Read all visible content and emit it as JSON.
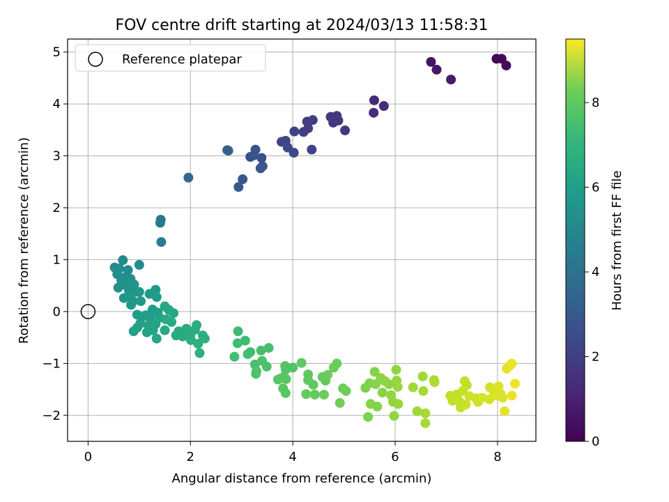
{
  "chart_data": {
    "type": "scatter",
    "title": "FOV centre drift starting at 2024/03/13 11:58:31",
    "xlabel": "Angular distance from reference (arcmin)",
    "ylabel": "Rotation from reference (arcmin)",
    "colorbar_label": "Hours from first FF file",
    "colormap": "viridis",
    "color_range": [
      0,
      9.5
    ],
    "xlim": [
      -0.4,
      8.75
    ],
    "ylim": [
      -2.5,
      5.25
    ],
    "xticks": [
      "0",
      "2",
      "4",
      "6",
      "8"
    ],
    "yticks": [
      "−2",
      "−1",
      "0",
      "1",
      "2",
      "3",
      "4",
      "5"
    ],
    "cticks": [
      "0",
      "2",
      "4",
      "6",
      "8"
    ],
    "grid": true,
    "legend": {
      "placement": "top-left",
      "entries": [
        "Reference platepar"
      ]
    },
    "reference_point": {
      "x": 0,
      "y": 0
    },
    "points": [
      {
        "x": 7.98,
        "y": 4.87,
        "c": 0.1
      },
      {
        "x": 8.08,
        "y": 4.87,
        "c": 0.2
      },
      {
        "x": 8.17,
        "y": 4.74,
        "c": 0.3
      },
      {
        "x": 6.7,
        "y": 4.81,
        "c": 0.5
      },
      {
        "x": 6.81,
        "y": 4.66,
        "c": 0.6
      },
      {
        "x": 7.09,
        "y": 4.47,
        "c": 0.7
      },
      {
        "x": 5.59,
        "y": 4.07,
        "c": 1.1
      },
      {
        "x": 5.78,
        "y": 3.96,
        "c": 1.2
      },
      {
        "x": 5.58,
        "y": 3.83,
        "c": 1.2
      },
      {
        "x": 4.74,
        "y": 3.75,
        "c": 1.5
      },
      {
        "x": 4.86,
        "y": 3.77,
        "c": 1.5
      },
      {
        "x": 4.79,
        "y": 3.64,
        "c": 1.6
      },
      {
        "x": 4.89,
        "y": 3.68,
        "c": 1.6
      },
      {
        "x": 5.02,
        "y": 3.49,
        "c": 1.6
      },
      {
        "x": 4.39,
        "y": 3.69,
        "c": 1.7
      },
      {
        "x": 4.28,
        "y": 3.66,
        "c": 1.7
      },
      {
        "x": 4.3,
        "y": 3.53,
        "c": 1.8
      },
      {
        "x": 4.21,
        "y": 3.46,
        "c": 1.8
      },
      {
        "x": 4.03,
        "y": 3.47,
        "c": 1.9
      },
      {
        "x": 4.37,
        "y": 3.12,
        "c": 1.9
      },
      {
        "x": 3.78,
        "y": 3.27,
        "c": 2.0
      },
      {
        "x": 3.86,
        "y": 3.29,
        "c": 2.0
      },
      {
        "x": 3.9,
        "y": 3.16,
        "c": 2.1
      },
      {
        "x": 4.02,
        "y": 3.06,
        "c": 2.1
      },
      {
        "x": 3.27,
        "y": 3.12,
        "c": 2.4
      },
      {
        "x": 3.17,
        "y": 2.98,
        "c": 2.4
      },
      {
        "x": 3.39,
        "y": 2.96,
        "c": 2.4
      },
      {
        "x": 3.24,
        "y": 3.01,
        "c": 2.5
      },
      {
        "x": 3.41,
        "y": 2.8,
        "c": 2.5
      },
      {
        "x": 3.37,
        "y": 2.76,
        "c": 2.6
      },
      {
        "x": 3.02,
        "y": 2.55,
        "c": 2.6
      },
      {
        "x": 2.94,
        "y": 2.4,
        "c": 2.7
      },
      {
        "x": 2.72,
        "y": 3.11,
        "c": 2.9
      },
      {
        "x": 2.74,
        "y": 3.1,
        "c": 2.9
      },
      {
        "x": 1.96,
        "y": 2.58,
        "c": 3.2
      },
      {
        "x": 1.42,
        "y": 1.77,
        "c": 3.9
      },
      {
        "x": 1.41,
        "y": 1.71,
        "c": 3.9
      },
      {
        "x": 1.43,
        "y": 1.34,
        "c": 4.1
      },
      {
        "x": 0.52,
        "y": 0.85,
        "c": 4.5
      },
      {
        "x": 0.68,
        "y": 0.99,
        "c": 4.5
      },
      {
        "x": 0.78,
        "y": 0.8,
        "c": 4.6
      },
      {
        "x": 0.61,
        "y": 0.83,
        "c": 4.6
      },
      {
        "x": 1.0,
        "y": 0.9,
        "c": 4.6
      },
      {
        "x": 0.57,
        "y": 0.72,
        "c": 4.7
      },
      {
        "x": 0.72,
        "y": 0.66,
        "c": 4.7
      },
      {
        "x": 0.65,
        "y": 0.6,
        "c": 4.7
      },
      {
        "x": 0.83,
        "y": 0.63,
        "c": 4.8
      },
      {
        "x": 0.59,
        "y": 0.46,
        "c": 4.8
      },
      {
        "x": 0.75,
        "y": 0.5,
        "c": 4.8
      },
      {
        "x": 0.9,
        "y": 0.52,
        "c": 4.9
      },
      {
        "x": 0.8,
        "y": 0.4,
        "c": 4.9
      },
      {
        "x": 0.95,
        "y": 0.38,
        "c": 4.9
      },
      {
        "x": 0.7,
        "y": 0.26,
        "c": 5.0
      },
      {
        "x": 0.82,
        "y": 0.3,
        "c": 5.0
      },
      {
        "x": 0.88,
        "y": 0.2,
        "c": 5.0
      },
      {
        "x": 1.0,
        "y": 0.38,
        "c": 5.0
      },
      {
        "x": 1.03,
        "y": 0.2,
        "c": 5.1
      },
      {
        "x": 0.84,
        "y": 0.13,
        "c": 5.1
      },
      {
        "x": 1.2,
        "y": 0.34,
        "c": 5.1
      },
      {
        "x": 1.32,
        "y": 0.42,
        "c": 5.1
      },
      {
        "x": 1.34,
        "y": 0.28,
        "c": 5.2
      },
      {
        "x": 0.96,
        "y": -0.06,
        "c": 5.2
      },
      {
        "x": 1.06,
        "y": -0.1,
        "c": 5.2
      },
      {
        "x": 1.13,
        "y": -0.07,
        "c": 5.3
      },
      {
        "x": 1.26,
        "y": 0.04,
        "c": 5.3
      },
      {
        "x": 1.36,
        "y": -0.02,
        "c": 5.3
      },
      {
        "x": 1.21,
        "y": -0.13,
        "c": 5.3
      },
      {
        "x": 1.02,
        "y": -0.23,
        "c": 5.4
      },
      {
        "x": 0.96,
        "y": -0.31,
        "c": 5.4
      },
      {
        "x": 0.89,
        "y": -0.38,
        "c": 5.4
      },
      {
        "x": 1.18,
        "y": -0.27,
        "c": 5.4
      },
      {
        "x": 1.32,
        "y": -0.24,
        "c": 5.5
      },
      {
        "x": 1.4,
        "y": -0.12,
        "c": 5.5
      },
      {
        "x": 1.15,
        "y": -0.4,
        "c": 5.5
      },
      {
        "x": 1.27,
        "y": -0.36,
        "c": 5.5
      },
      {
        "x": 1.34,
        "y": -0.52,
        "c": 5.6
      },
      {
        "x": 1.5,
        "y": 0.1,
        "c": 5.6
      },
      {
        "x": 1.58,
        "y": 0.03,
        "c": 5.6
      },
      {
        "x": 1.67,
        "y": -0.03,
        "c": 5.6
      },
      {
        "x": 1.52,
        "y": -0.15,
        "c": 5.7
      },
      {
        "x": 1.63,
        "y": -0.2,
        "c": 5.7
      },
      {
        "x": 1.5,
        "y": -0.36,
        "c": 5.7
      },
      {
        "x": 1.77,
        "y": -0.38,
        "c": 5.8
      },
      {
        "x": 1.72,
        "y": -0.46,
        "c": 5.8
      },
      {
        "x": 1.85,
        "y": -0.48,
        "c": 5.8
      },
      {
        "x": 1.92,
        "y": -0.33,
        "c": 5.8
      },
      {
        "x": 2.0,
        "y": -0.45,
        "c": 5.9
      },
      {
        "x": 2.09,
        "y": -0.35,
        "c": 5.9
      },
      {
        "x": 2.12,
        "y": -0.26,
        "c": 5.9
      },
      {
        "x": 2.01,
        "y": -0.55,
        "c": 5.9
      },
      {
        "x": 2.15,
        "y": -0.62,
        "c": 6.0
      },
      {
        "x": 2.24,
        "y": -0.46,
        "c": 6.0
      },
      {
        "x": 2.28,
        "y": -0.52,
        "c": 6.0
      },
      {
        "x": 2.18,
        "y": -0.8,
        "c": 6.0
      },
      {
        "x": 2.93,
        "y": -0.38,
        "c": 6.5
      },
      {
        "x": 2.92,
        "y": -0.61,
        "c": 6.5
      },
      {
        "x": 3.07,
        "y": -0.56,
        "c": 6.5
      },
      {
        "x": 2.86,
        "y": -0.87,
        "c": 6.6
      },
      {
        "x": 3.12,
        "y": -0.82,
        "c": 6.6
      },
      {
        "x": 3.17,
        "y": -0.78,
        "c": 6.6
      },
      {
        "x": 3.38,
        "y": -0.75,
        "c": 6.7
      },
      {
        "x": 3.53,
        "y": -0.7,
        "c": 6.7
      },
      {
        "x": 3.26,
        "y": -1.02,
        "c": 6.7
      },
      {
        "x": 3.4,
        "y": -0.95,
        "c": 6.8
      },
      {
        "x": 3.49,
        "y": -1.06,
        "c": 6.8
      },
      {
        "x": 3.29,
        "y": -1.15,
        "c": 6.8
      },
      {
        "x": 3.28,
        "y": -1.2,
        "c": 6.8
      },
      {
        "x": 3.85,
        "y": -1.05,
        "c": 6.9
      },
      {
        "x": 3.86,
        "y": -1.12,
        "c": 6.9
      },
      {
        "x": 4.0,
        "y": -1.08,
        "c": 6.9
      },
      {
        "x": 3.78,
        "y": -1.28,
        "c": 7.0
      },
      {
        "x": 3.71,
        "y": -1.31,
        "c": 7.0
      },
      {
        "x": 3.87,
        "y": -1.3,
        "c": 7.0
      },
      {
        "x": 3.81,
        "y": -1.48,
        "c": 7.0
      },
      {
        "x": 3.86,
        "y": -1.57,
        "c": 7.0
      },
      {
        "x": 4.17,
        "y": -0.99,
        "c": 7.1
      },
      {
        "x": 4.3,
        "y": -1.21,
        "c": 7.1
      },
      {
        "x": 4.3,
        "y": -1.32,
        "c": 7.1
      },
      {
        "x": 4.4,
        "y": -1.41,
        "c": 7.1
      },
      {
        "x": 4.26,
        "y": -1.59,
        "c": 7.2
      },
      {
        "x": 4.43,
        "y": -1.6,
        "c": 7.2
      },
      {
        "x": 4.58,
        "y": -1.26,
        "c": 7.2
      },
      {
        "x": 4.64,
        "y": -1.33,
        "c": 7.2
      },
      {
        "x": 4.68,
        "y": -1.22,
        "c": 7.3
      },
      {
        "x": 4.8,
        "y": -1.08,
        "c": 7.3
      },
      {
        "x": 4.86,
        "y": -1.0,
        "c": 7.3
      },
      {
        "x": 4.61,
        "y": -1.6,
        "c": 7.3
      },
      {
        "x": 4.92,
        "y": -1.76,
        "c": 7.4
      },
      {
        "x": 4.98,
        "y": -1.48,
        "c": 7.4
      },
      {
        "x": 5.04,
        "y": -1.53,
        "c": 7.4
      },
      {
        "x": 5.42,
        "y": -1.47,
        "c": 7.6
      },
      {
        "x": 5.5,
        "y": -1.38,
        "c": 7.6
      },
      {
        "x": 5.47,
        "y": -2.03,
        "c": 7.6
      },
      {
        "x": 5.52,
        "y": -1.78,
        "c": 7.7
      },
      {
        "x": 5.6,
        "y": -1.16,
        "c": 7.7
      },
      {
        "x": 5.62,
        "y": -1.4,
        "c": 7.7
      },
      {
        "x": 5.65,
        "y": -1.83,
        "c": 7.7
      },
      {
        "x": 5.72,
        "y": -1.28,
        "c": 7.8
      },
      {
        "x": 5.75,
        "y": -1.56,
        "c": 7.8
      },
      {
        "x": 5.8,
        "y": -1.34,
        "c": 7.8
      },
      {
        "x": 5.88,
        "y": -1.4,
        "c": 7.8
      },
      {
        "x": 5.92,
        "y": -1.61,
        "c": 7.9
      },
      {
        "x": 5.96,
        "y": -1.74,
        "c": 7.9
      },
      {
        "x": 5.98,
        "y": -2.01,
        "c": 7.9
      },
      {
        "x": 6.02,
        "y": -1.12,
        "c": 7.9
      },
      {
        "x": 6.03,
        "y": -1.33,
        "c": 8.0
      },
      {
        "x": 6.05,
        "y": -1.45,
        "c": 8.0
      },
      {
        "x": 6.06,
        "y": -1.78,
        "c": 8.0
      },
      {
        "x": 6.35,
        "y": -1.46,
        "c": 8.1
      },
      {
        "x": 6.43,
        "y": -1.92,
        "c": 8.1
      },
      {
        "x": 6.54,
        "y": -1.25,
        "c": 8.1
      },
      {
        "x": 6.55,
        "y": -1.53,
        "c": 8.2
      },
      {
        "x": 6.59,
        "y": -1.96,
        "c": 8.2
      },
      {
        "x": 6.59,
        "y": -2.15,
        "c": 8.2
      },
      {
        "x": 6.76,
        "y": -1.32,
        "c": 8.3
      },
      {
        "x": 6.77,
        "y": -1.36,
        "c": 8.3
      },
      {
        "x": 7.08,
        "y": -1.62,
        "c": 8.6
      },
      {
        "x": 7.12,
        "y": -1.72,
        "c": 8.6
      },
      {
        "x": 7.2,
        "y": -1.6,
        "c": 8.6
      },
      {
        "x": 7.25,
        "y": -1.72,
        "c": 8.7
      },
      {
        "x": 7.28,
        "y": -1.85,
        "c": 8.7
      },
      {
        "x": 7.32,
        "y": -1.53,
        "c": 8.7
      },
      {
        "x": 7.36,
        "y": -1.34,
        "c": 8.7
      },
      {
        "x": 7.4,
        "y": -1.42,
        "c": 8.7
      },
      {
        "x": 7.38,
        "y": -1.79,
        "c": 8.8
      },
      {
        "x": 7.45,
        "y": -1.63,
        "c": 8.8
      },
      {
        "x": 7.58,
        "y": -1.67,
        "c": 8.8
      },
      {
        "x": 7.62,
        "y": -1.74,
        "c": 8.8
      },
      {
        "x": 7.7,
        "y": -1.66,
        "c": 8.9
      },
      {
        "x": 7.84,
        "y": -1.69,
        "c": 8.9
      },
      {
        "x": 7.85,
        "y": -1.46,
        "c": 8.9
      },
      {
        "x": 7.92,
        "y": -1.53,
        "c": 8.9
      },
      {
        "x": 7.98,
        "y": -1.62,
        "c": 9.0
      },
      {
        "x": 8.02,
        "y": -1.44,
        "c": 9.0
      },
      {
        "x": 8.06,
        "y": -1.58,
        "c": 9.0
      },
      {
        "x": 8.1,
        "y": -1.66,
        "c": 9.0
      },
      {
        "x": 8.14,
        "y": -1.92,
        "c": 9.1
      },
      {
        "x": 8.18,
        "y": -1.1,
        "c": 9.1
      },
      {
        "x": 8.24,
        "y": -1.04,
        "c": 9.1
      },
      {
        "x": 8.28,
        "y": -1.0,
        "c": 9.2
      },
      {
        "x": 8.28,
        "y": -1.62,
        "c": 9.2
      },
      {
        "x": 8.34,
        "y": -1.39,
        "c": 9.3
      }
    ]
  }
}
